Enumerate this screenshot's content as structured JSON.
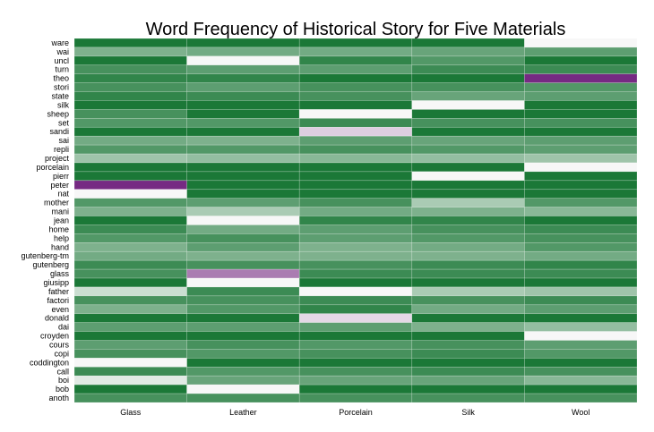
{
  "chart_data": {
    "type": "heatmap",
    "title": "Word Frequency of Historical Story for Five Materials",
    "xlabel": "",
    "ylabel": "",
    "columns": [
      "Glass",
      "Leather",
      "Porcelain",
      "Silk",
      "Wool"
    ],
    "rows": [
      "ware",
      "wai",
      "uncl",
      "turn",
      "theo",
      "stori",
      "state",
      "silk",
      "sheep",
      "set",
      "sandi",
      "sai",
      "repli",
      "project",
      "porcelain",
      "pierr",
      "peter",
      "nat",
      "mother",
      "mani",
      "jean",
      "home",
      "help",
      "hand",
      "gutenberg-tm",
      "gutenberg",
      "glass",
      "giusipp",
      "father",
      "factori",
      "even",
      "donald",
      "dai",
      "croyden",
      "cours",
      "copi",
      "coddington",
      "call",
      "boi",
      "bob",
      "anoth"
    ],
    "values": [
      [
        1.0,
        1.0,
        1.0,
        1.0,
        0.0
      ],
      [
        0.55,
        0.6,
        0.6,
        0.65,
        0.7
      ],
      [
        1.0,
        0.0,
        0.9,
        0.75,
        1.0
      ],
      [
        0.8,
        0.7,
        0.7,
        0.85,
        0.85
      ],
      [
        0.9,
        0.9,
        1.0,
        1.0,
        -1.0
      ],
      [
        0.8,
        0.7,
        0.8,
        0.8,
        0.75
      ],
      [
        0.9,
        0.85,
        0.8,
        0.65,
        0.7
      ],
      [
        1.0,
        1.0,
        1.0,
        0.0,
        1.0
      ],
      [
        0.8,
        1.0,
        0.0,
        1.0,
        1.0
      ],
      [
        0.75,
        0.75,
        0.85,
        0.8,
        0.8
      ],
      [
        1.0,
        1.0,
        -0.2,
        1.0,
        1.0
      ],
      [
        0.6,
        0.55,
        0.7,
        0.65,
        0.7
      ],
      [
        0.75,
        0.75,
        0.8,
        0.75,
        0.7
      ],
      [
        0.4,
        0.45,
        0.5,
        0.45,
        0.4
      ],
      [
        1.0,
        1.0,
        1.0,
        1.0,
        0.0
      ],
      [
        1.0,
        1.0,
        1.0,
        0.0,
        1.0
      ],
      [
        -1.0,
        1.0,
        1.0,
        1.0,
        1.0
      ],
      [
        0.0,
        1.0,
        1.0,
        1.0,
        1.0
      ],
      [
        0.75,
        0.7,
        0.8,
        0.35,
        0.75
      ],
      [
        0.55,
        0.35,
        0.6,
        0.55,
        0.5
      ],
      [
        1.0,
        0.0,
        0.9,
        0.9,
        1.0
      ],
      [
        0.85,
        0.6,
        0.7,
        0.8,
        0.85
      ],
      [
        0.75,
        0.8,
        0.7,
        0.75,
        0.8
      ],
      [
        0.55,
        0.7,
        0.55,
        0.6,
        0.75
      ],
      [
        0.6,
        0.55,
        0.55,
        0.55,
        0.6
      ],
      [
        0.85,
        0.8,
        0.8,
        0.85,
        0.9
      ],
      [
        0.8,
        -0.6,
        0.85,
        0.85,
        0.85
      ],
      [
        1.0,
        0.0,
        1.0,
        1.0,
        1.0
      ],
      [
        0.2,
        0.85,
        0.0,
        0.35,
        0.4
      ],
      [
        0.8,
        0.8,
        0.85,
        0.8,
        0.85
      ],
      [
        0.55,
        0.75,
        0.9,
        0.6,
        0.7
      ],
      [
        1.0,
        1.0,
        -0.15,
        1.0,
        1.0
      ],
      [
        0.7,
        0.7,
        0.7,
        0.55,
        0.45
      ],
      [
        1.0,
        1.0,
        1.0,
        1.0,
        0.0
      ],
      [
        0.7,
        0.8,
        0.75,
        0.8,
        0.7
      ],
      [
        0.8,
        0.75,
        0.8,
        0.85,
        0.75
      ],
      [
        0.0,
        1.0,
        1.0,
        1.0,
        1.0
      ],
      [
        0.85,
        0.75,
        0.8,
        0.85,
        0.8
      ],
      [
        0.1,
        0.65,
        0.65,
        0.65,
        0.5
      ],
      [
        1.0,
        0.0,
        1.0,
        1.0,
        1.0
      ],
      [
        0.8,
        0.8,
        0.8,
        0.8,
        0.8
      ]
    ],
    "color_scale": {
      "negative": "#762a83",
      "neutral": "#f7f7f7",
      "positive": "#1b7837"
    },
    "legend": "none",
    "grid": false
  }
}
